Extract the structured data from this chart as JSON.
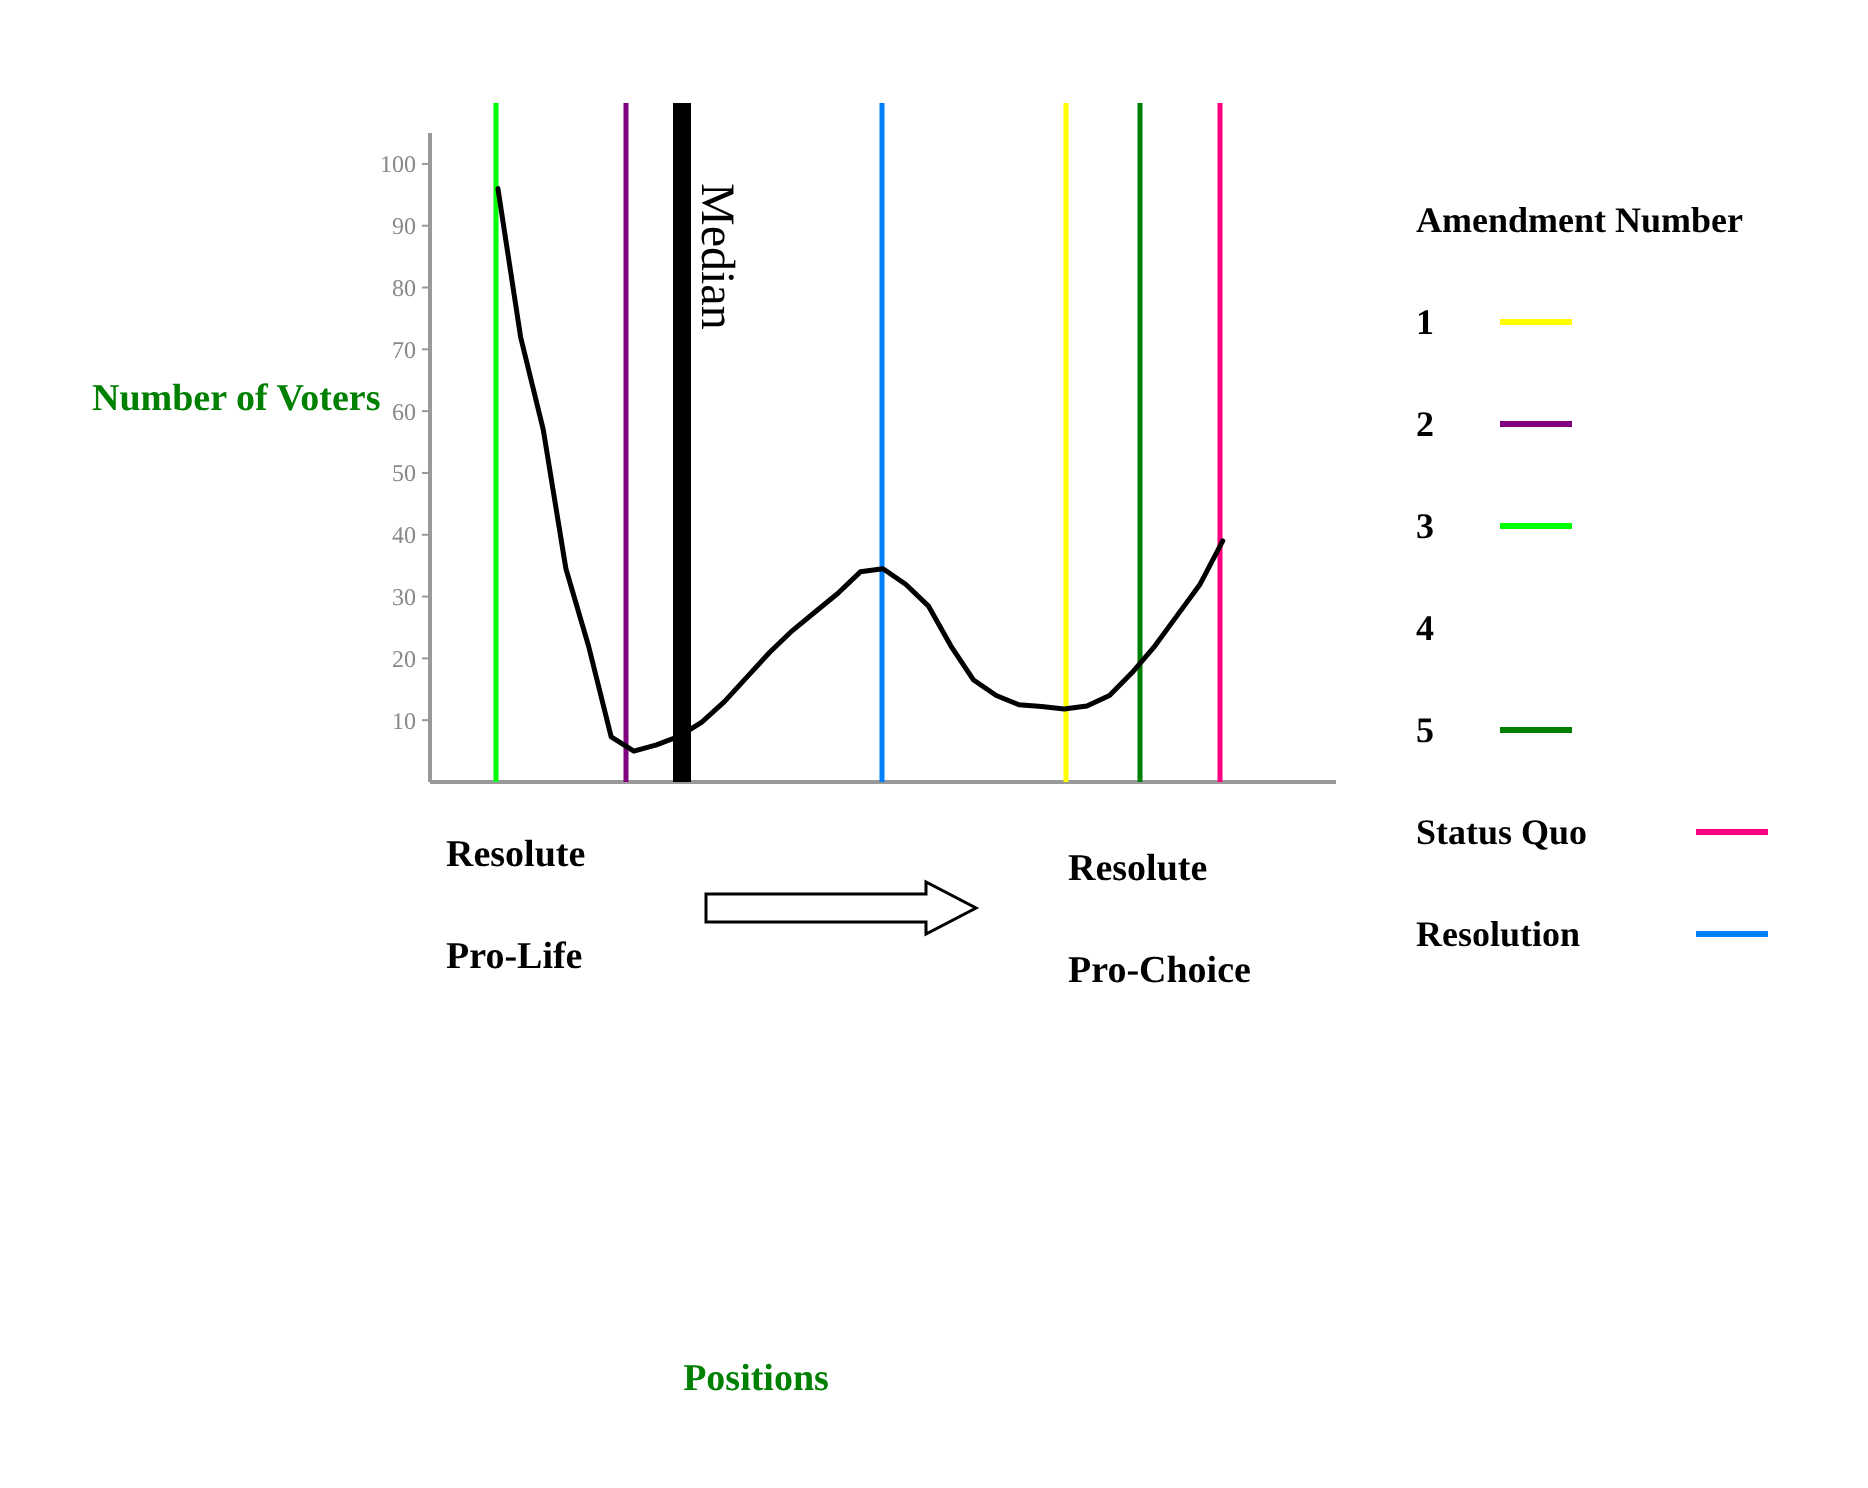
{
  "chart_data": {
    "type": "line",
    "ylabel": "Number of Voters",
    "legend_title": "Amendment Number",
    "tick_labels": "y",
    "grid": false,
    "marker": "none",
    "line_style": "solid",
    "categories": [
      null,
      null,
      null,
      null,
      null,
      null,
      null,
      null,
      null,
      null,
      null,
      null,
      null,
      null,
      null,
      null,
      null,
      null,
      null,
      null,
      null,
      null,
      null,
      null,
      null,
      null,
      null,
      null,
      null,
      null,
      null,
      null,
      null,
      null,
      null,
      null,
      null,
      null,
      null,
      null,
      null
    ],
    "ylim": [
      0,
      105
    ],
    "yticks": [
      10,
      20,
      30,
      40,
      50,
      60,
      70,
      80,
      90,
      100
    ],
    "series": [
      {
        "color": "#000000",
        "values": [
          null,
          null,
          null,
          96,
          72,
          57,
          34.5,
          22,
          7.3,
          5,
          6,
          7.4,
          9.7,
          13,
          17,
          21,
          24.5,
          27.5,
          30.5,
          34,
          34.5,
          32,
          28.5,
          22,
          16.5,
          14,
          12.5,
          12.2,
          11.8,
          12.3,
          14,
          17.7,
          22,
          27,
          32,
          39,
          null,
          null,
          null,
          null,
          null
        ]
      }
    ],
    "ref_lines": [
      {
        "axis": "x",
        "label": "1",
        "color": "#ffff00"
      },
      {
        "axis": "x",
        "label": "2",
        "color": "#800080"
      },
      {
        "axis": "x",
        "label": "3",
        "color": "#00ff00"
      },
      {
        "axis": "x",
        "label": "4"
      },
      {
        "axis": "x",
        "label": "5",
        "color": "#008000"
      },
      {
        "axis": "x",
        "label": "Status Quo",
        "color": "#ff0080"
      },
      {
        "axis": "x",
        "label": "Resolution",
        "color": "#0080ff"
      }
    ],
    "annotations": [
      "Median",
      "Resolute Pro-Life",
      "Resolute Pro-Choice",
      "Positions"
    ]
  }
}
